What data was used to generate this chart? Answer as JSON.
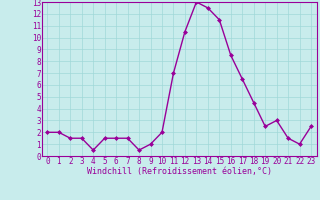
{
  "x": [
    0,
    1,
    2,
    3,
    4,
    5,
    6,
    7,
    8,
    9,
    10,
    11,
    12,
    13,
    14,
    15,
    16,
    17,
    18,
    19,
    20,
    21,
    22,
    23
  ],
  "y": [
    2,
    2,
    1.5,
    1.5,
    0.5,
    1.5,
    1.5,
    1.5,
    0.5,
    1.0,
    2.0,
    7.0,
    10.5,
    13.0,
    12.5,
    11.5,
    8.5,
    6.5,
    4.5,
    2.5,
    3.0,
    1.5,
    1.0,
    2.5
  ],
  "line_color": "#990099",
  "marker": "D",
  "markersize": 2,
  "linewidth": 1.0,
  "bg_color": "#c8ecec",
  "grid_color": "#a0d8d8",
  "xlabel": "Windchill (Refroidissement éolien,°C)",
  "xlabel_color": "#990099",
  "tick_color": "#990099",
  "ylim": [
    0,
    13
  ],
  "xlim": [
    -0.5,
    23.5
  ],
  "yticks": [
    0,
    1,
    2,
    3,
    4,
    5,
    6,
    7,
    8,
    9,
    10,
    11,
    12,
    13
  ],
  "xticks": [
    0,
    1,
    2,
    3,
    4,
    5,
    6,
    7,
    8,
    9,
    10,
    11,
    12,
    13,
    14,
    15,
    16,
    17,
    18,
    19,
    20,
    21,
    22,
    23
  ],
  "spine_color": "#990099",
  "label_fontsize": 6.0,
  "tick_fontsize": 5.5
}
